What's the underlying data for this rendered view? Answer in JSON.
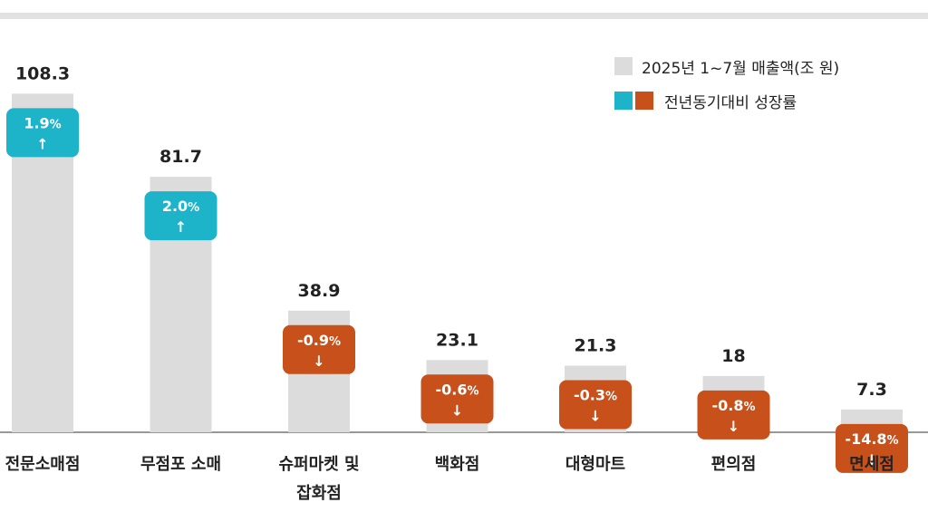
{
  "chart_data": {
    "type": "bar",
    "categories": [
      "전문소매점",
      "무점포 소매",
      "슈퍼마켓 및\n잡화점",
      "백화점",
      "대형마트",
      "편의점",
      "면세점"
    ],
    "series": [
      {
        "name": "2025년 1~7월 매출액(조 원)",
        "values": [
          108.3,
          81.7,
          38.9,
          23.1,
          21.3,
          18,
          7.3
        ],
        "value_labels": [
          "108.3",
          "81.7",
          "38.9",
          "23.1",
          "21.3",
          "18",
          "7.3"
        ]
      },
      {
        "name": "전년동기대비 성장률",
        "values": [
          1.9,
          2.0,
          -0.9,
          -0.6,
          -0.3,
          -0.8,
          -14.8
        ],
        "value_labels": [
          "1.9",
          "2.0",
          "-0.9",
          "-0.6",
          "-0.3",
          "-0.8",
          "-14.8"
        ]
      }
    ],
    "percent_sign": "%",
    "up_arrow": "↑",
    "down_arrow": "↓",
    "ylim": [
      0,
      120
    ],
    "grid": false,
    "legend_position": "top-right",
    "colors": {
      "bar": "#dcdcdc",
      "positive": "#1db3c9",
      "negative": "#c8501b",
      "axis": "#777777",
      "text": "#222222"
    }
  },
  "legend": {
    "sales_label": "2025년 1~7월 매출액(조 원)",
    "growth_label": "전년동기대비 성장률"
  }
}
